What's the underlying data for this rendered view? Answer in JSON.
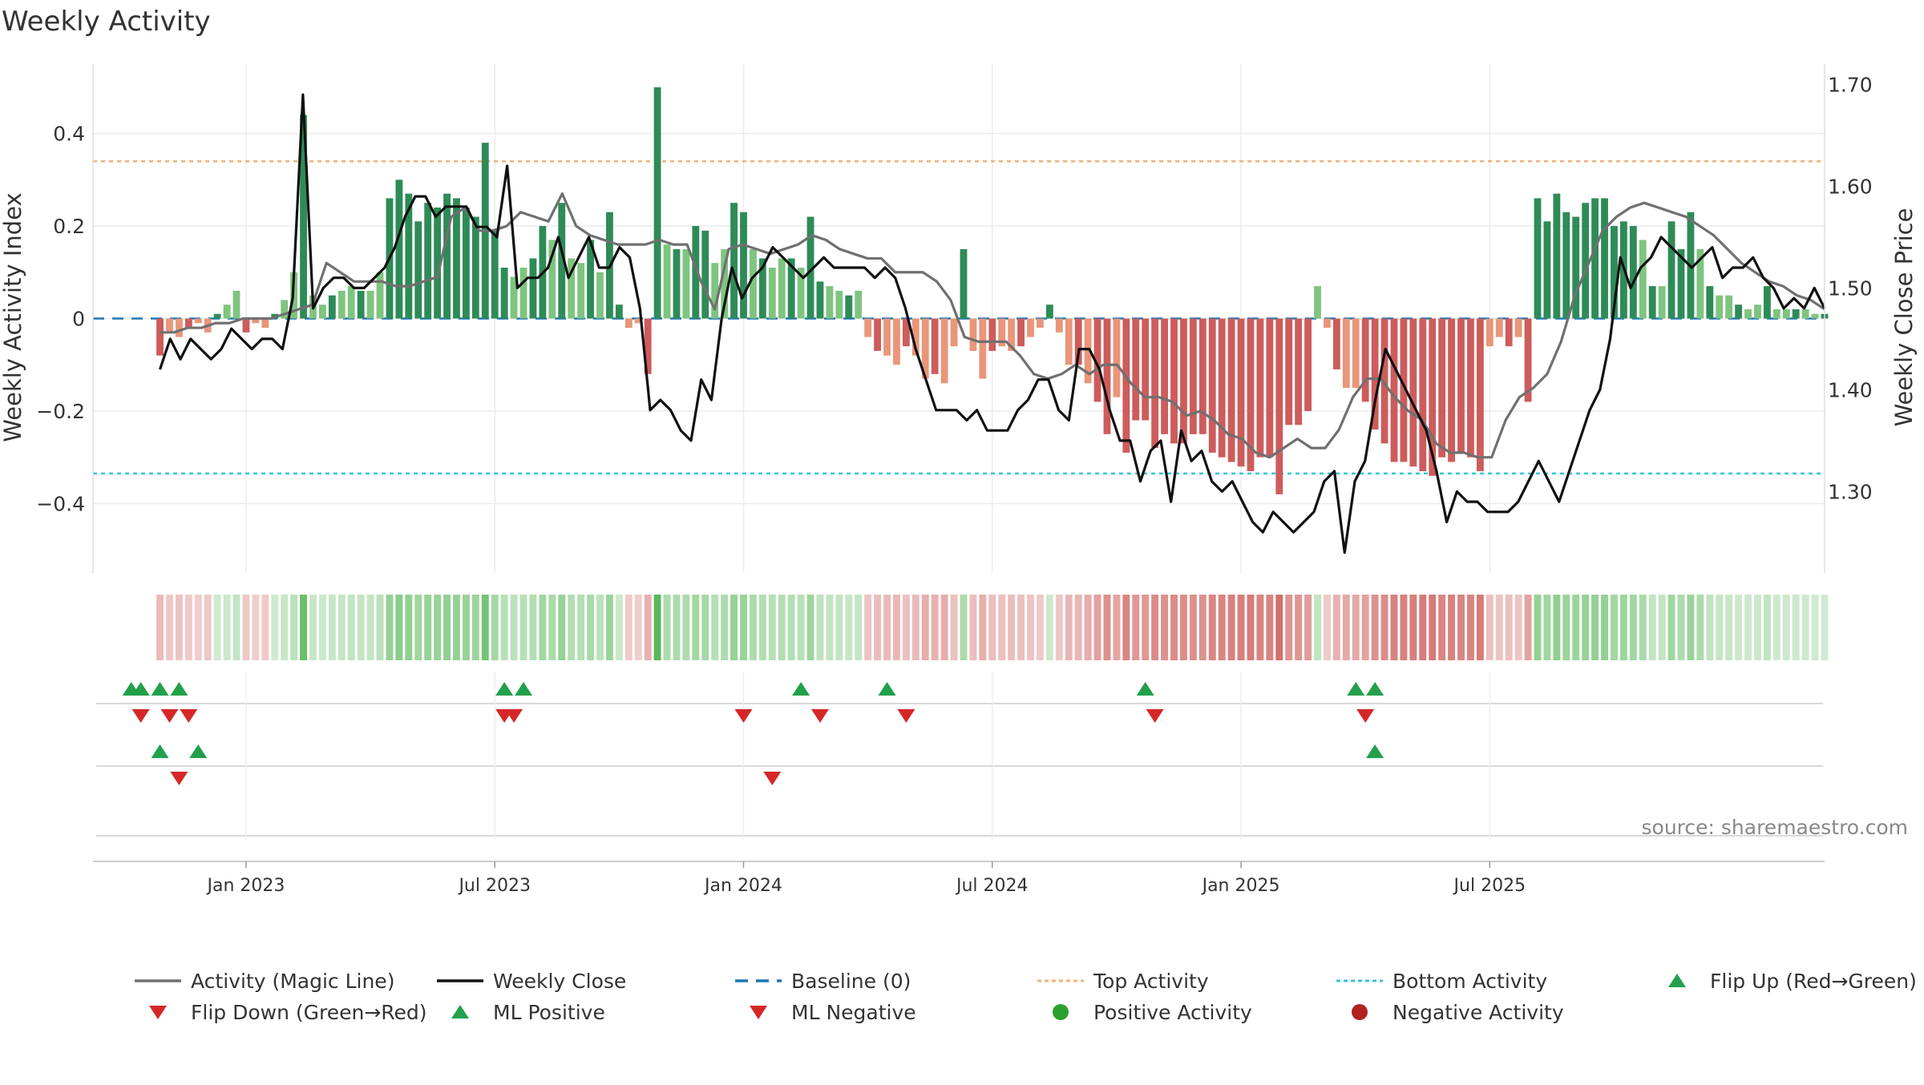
{
  "chart_data": {
    "type": "bar",
    "title": "Weekly Activity",
    "ylabel_left": "Weekly Activity Index",
    "ylabel_right": "Weekly Close Price",
    "source": "source: sharemaestro.com",
    "xlim_weeks": [
      -7,
      174
    ],
    "ylim": [
      -0.55,
      0.55
    ],
    "ylim_right": [
      1.22,
      1.72
    ],
    "yticks_left": [
      {
        "v": 0.4,
        "label": "0.4"
      },
      {
        "v": 0.2,
        "label": "0.2"
      },
      {
        "v": 0,
        "label": "0"
      },
      {
        "v": -0.2,
        "label": "−0.2"
      },
      {
        "v": -0.4,
        "label": "−0.4"
      }
    ],
    "yticks_right": [
      {
        "v": 1.7,
        "label": "1.70"
      },
      {
        "v": 1.6,
        "label": "1.60"
      },
      {
        "v": 1.5,
        "label": "1.50"
      },
      {
        "v": 1.4,
        "label": "1.40"
      },
      {
        "v": 1.3,
        "label": "1.30"
      }
    ],
    "xticks": [
      {
        "w": 9,
        "label": "Jan 2023"
      },
      {
        "w": 35,
        "label": "Jul 2023"
      },
      {
        "w": 61,
        "label": "Jan 2024"
      },
      {
        "w": 87,
        "label": "Jul 2024"
      },
      {
        "w": 113,
        "label": "Jan 2025"
      },
      {
        "w": 139,
        "label": "Jul 2025"
      }
    ],
    "top_activity": 0.34,
    "bottom_activity": -0.335,
    "colors": {
      "pos_strong": "#2e8b57",
      "pos_weak": "#7fc47f",
      "neg_strong": "#cd5c5c",
      "neg_weak": "#e9967a",
      "magic": "#707070",
      "close": "#111111",
      "baseline": "#1f77b4",
      "top": "#f0b27a",
      "bottom": "#33c6dc",
      "up": "#22a04b",
      "down": "#d62728",
      "pos_dot": "#2ca02c",
      "neg_dot": "#b22222"
    },
    "activity": [
      -0.08,
      -0.03,
      -0.04,
      -0.02,
      -0.01,
      -0.03,
      0.01,
      0.03,
      0.06,
      -0.03,
      -0.01,
      -0.02,
      0.01,
      0.04,
      0.1,
      0.44,
      0.05,
      0.03,
      0.05,
      0.06,
      0.07,
      0.06,
      0.06,
      0.1,
      0.26,
      0.3,
      0.27,
      0.21,
      0.25,
      0.24,
      0.27,
      0.26,
      0.24,
      0.22,
      0.38,
      0.19,
      0.11,
      0.09,
      0.11,
      0.13,
      0.2,
      0.17,
      0.25,
      0.13,
      0.12,
      0.17,
      0.1,
      0.23,
      0.03,
      -0.02,
      -0.01,
      -0.12,
      0.5,
      0.16,
      0.15,
      0.15,
      0.2,
      0.19,
      0.12,
      0.15,
      0.25,
      0.23,
      0.15,
      0.13,
      0.11,
      0.13,
      0.13,
      0.11,
      0.22,
      0.08,
      0.07,
      0.06,
      0.05,
      0.06,
      -0.04,
      -0.07,
      -0.08,
      -0.1,
      -0.06,
      -0.08,
      -0.13,
      -0.12,
      -0.14,
      -0.06,
      0.15,
      -0.07,
      -0.13,
      -0.07,
      -0.06,
      -0.07,
      -0.06,
      -0.04,
      -0.02,
      0.03,
      -0.03,
      -0.1,
      -0.1,
      -0.14,
      -0.18,
      -0.25,
      -0.17,
      -0.29,
      -0.22,
      -0.22,
      -0.28,
      -0.25,
      -0.27,
      -0.27,
      -0.25,
      -0.25,
      -0.29,
      -0.3,
      -0.31,
      -0.32,
      -0.33,
      -0.3,
      -0.3,
      -0.38,
      -0.23,
      -0.23,
      -0.2,
      0.07,
      -0.02,
      -0.11,
      -0.15,
      -0.15,
      -0.18,
      -0.24,
      -0.27,
      -0.31,
      -0.31,
      -0.32,
      -0.33,
      -0.34,
      -0.3,
      -0.31,
      -0.29,
      -0.3,
      -0.33,
      -0.06,
      -0.04,
      -0.06,
      -0.04,
      -0.18,
      0.26,
      0.21,
      0.27,
      0.23,
      0.22,
      0.25,
      0.26,
      0.26,
      0.2,
      0.21,
      0.2,
      0.17,
      0.07,
      0.07,
      0.21,
      0.15,
      0.23,
      0.15,
      0.07,
      0.05,
      0.05,
      0.03,
      0.02,
      0.03,
      0.07,
      0.02,
      0.02,
      0.02,
      0.02,
      0.01,
      0.01
    ],
    "magic_line": [
      -0.03,
      -0.03,
      -0.02,
      -0.02,
      -0.01,
      -0.01,
      0,
      0,
      0,
      0.01,
      0.02,
      0.03,
      0.12,
      0.1,
      0.08,
      0.08,
      0.08,
      0.07,
      0.07,
      0.08,
      0.09,
      0.22,
      0.24,
      0.19,
      0.19,
      0.2,
      0.23,
      0.22,
      0.21,
      0.27,
      0.2,
      0.18,
      0.17,
      0.16,
      0.16,
      0.16,
      0.17,
      0.16,
      0.16,
      0.08,
      0.02,
      0.15,
      0.16,
      0.15,
      0.14,
      0.15,
      0.16,
      0.18,
      0.17,
      0.15,
      0.14,
      0.13,
      0.13,
      0.1,
      0.1,
      0.1,
      0.08,
      0.04,
      -0.04,
      -0.05,
      -0.05,
      -0.05,
      -0.08,
      -0.12,
      -0.13,
      -0.12,
      -0.1,
      -0.12,
      -0.1,
      -0.1,
      -0.14,
      -0.17,
      -0.17,
      -0.18,
      -0.21,
      -0.2,
      -0.22,
      -0.25,
      -0.26,
      -0.29,
      -0.3,
      -0.28,
      -0.26,
      -0.28,
      -0.28,
      -0.24,
      -0.17,
      -0.13,
      -0.13,
      -0.17,
      -0.2,
      -0.22,
      -0.27,
      -0.29,
      -0.29,
      -0.3,
      -0.3,
      -0.22,
      -0.17,
      -0.15,
      -0.12,
      -0.05,
      0.05,
      0.12,
      0.19,
      0.22,
      0.24,
      0.25,
      0.24,
      0.23,
      0.22,
      0.2,
      0.18,
      0.15,
      0.12,
      0.1,
      0.08,
      0.07,
      0.05,
      0.04,
      0.02
    ],
    "weekly_close": [
      1.42,
      1.45,
      1.43,
      1.45,
      1.44,
      1.43,
      1.44,
      1.46,
      1.45,
      1.44,
      1.45,
      1.45,
      1.44,
      1.49,
      1.69,
      1.48,
      1.5,
      1.51,
      1.51,
      1.5,
      1.5,
      1.51,
      1.52,
      1.54,
      1.57,
      1.59,
      1.59,
      1.57,
      1.58,
      1.58,
      1.58,
      1.56,
      1.56,
      1.55,
      1.62,
      1.5,
      1.51,
      1.51,
      1.52,
      1.55,
      1.51,
      1.53,
      1.55,
      1.52,
      1.52,
      1.54,
      1.53,
      1.48,
      1.38,
      1.39,
      1.38,
      1.36,
      1.35,
      1.41,
      1.39,
      1.47,
      1.52,
      1.49,
      1.51,
      1.52,
      1.54,
      1.53,
      1.52,
      1.51,
      1.52,
      1.53,
      1.52,
      1.52,
      1.52,
      1.52,
      1.51,
      1.52,
      1.51,
      1.48,
      1.44,
      1.41,
      1.38,
      1.38,
      1.38,
      1.37,
      1.38,
      1.36,
      1.36,
      1.36,
      1.38,
      1.39,
      1.41,
      1.41,
      1.38,
      1.37,
      1.44,
      1.44,
      1.42,
      1.38,
      1.35,
      1.35,
      1.31,
      1.34,
      1.35,
      1.29,
      1.36,
      1.33,
      1.34,
      1.31,
      1.3,
      1.31,
      1.29,
      1.27,
      1.26,
      1.28,
      1.27,
      1.26,
      1.27,
      1.28,
      1.31,
      1.32,
      1.24,
      1.31,
      1.33,
      1.39,
      1.44,
      1.42,
      1.4,
      1.38,
      1.36,
      1.32,
      1.27,
      1.3,
      1.29,
      1.29,
      1.28,
      1.28,
      1.28,
      1.29,
      1.31,
      1.33,
      1.31,
      1.29,
      1.32,
      1.35,
      1.38,
      1.4,
      1.45,
      1.53,
      1.5,
      1.52,
      1.53,
      1.55,
      1.54,
      1.53,
      1.52,
      1.53,
      1.54,
      1.51,
      1.52,
      1.52,
      1.53,
      1.51,
      1.5,
      1.48,
      1.49,
      1.48,
      1.5,
      1.48
    ],
    "flip_up_row1": [
      -3,
      -2,
      0,
      2,
      36,
      38,
      67,
      76,
      103,
      125,
      127
    ],
    "flip_down_row1": [
      -2,
      1,
      3,
      36,
      37,
      61,
      69,
      78,
      104,
      126
    ],
    "flip_up_row2": [
      0,
      4,
      127
    ],
    "flip_down_row2": [
      2,
      64
    ],
    "legend": [
      {
        "type": "line",
        "key": "magic",
        "label": "Activity (Magic Line)"
      },
      {
        "type": "line",
        "key": "close",
        "label": "Weekly Close"
      },
      {
        "type": "dash",
        "key": "baseline",
        "label": "Baseline (0)"
      },
      {
        "type": "dot-line",
        "key": "top",
        "label": "Top Activity"
      },
      {
        "type": "dot-line",
        "key": "bottom",
        "label": "Bottom Activity"
      },
      {
        "type": "tri-up",
        "key": "up",
        "label": "Flip Up (Red→Green)"
      },
      {
        "type": "tri-down",
        "key": "down",
        "label": "Flip Down (Green→Red)"
      },
      {
        "type": "tri-up",
        "key": "up",
        "label": "ML Positive"
      },
      {
        "type": "tri-down",
        "key": "down",
        "label": "ML Negative"
      },
      {
        "type": "dot",
        "key": "pos_dot",
        "label": "Positive Activity"
      },
      {
        "type": "dot",
        "key": "neg_dot",
        "label": "Negative Activity"
      }
    ]
  }
}
